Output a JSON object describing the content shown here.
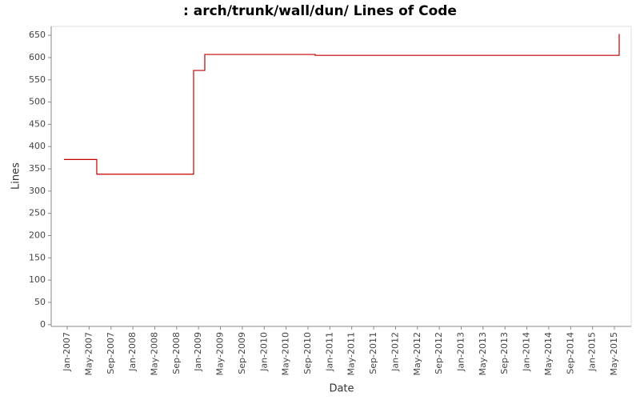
{
  "chart_data": {
    "type": "line",
    "step": "after",
    "title": ": arch/trunk/wall/dun/ Lines of Code",
    "x_label": "Date",
    "y_label": "Lines",
    "x": [
      2006.95,
      2007.45,
      2008.925,
      2009.095,
      2010.777,
      2015.406
    ],
    "series": [
      {
        "name": "Lines",
        "color": "#c00000",
        "values": [
          371,
          338,
          571,
          607,
          605,
          653
        ]
      }
    ],
    "xlim": [
      2006.756,
      2015.589
    ],
    "xticks": [
      {
        "value": 2007.0,
        "label": "Jan-2007"
      },
      {
        "value": 2007.333,
        "label": "May-2007"
      },
      {
        "value": 2007.667,
        "label": "Sep-2007"
      },
      {
        "value": 2008.0,
        "label": "Jan-2008"
      },
      {
        "value": 2008.333,
        "label": "May-2008"
      },
      {
        "value": 2008.667,
        "label": "Sep-2008"
      },
      {
        "value": 2009.0,
        "label": "Jan-2009"
      },
      {
        "value": 2009.333,
        "label": "May-2009"
      },
      {
        "value": 2009.667,
        "label": "Sep-2009"
      },
      {
        "value": 2010.0,
        "label": "Jan-2010"
      },
      {
        "value": 2010.333,
        "label": "May-2010"
      },
      {
        "value": 2010.667,
        "label": "Sep-2010"
      },
      {
        "value": 2011.0,
        "label": "Jan-2011"
      },
      {
        "value": 2011.333,
        "label": "May-2011"
      },
      {
        "value": 2011.667,
        "label": "Sep-2011"
      },
      {
        "value": 2012.0,
        "label": "Jan-2012"
      },
      {
        "value": 2012.333,
        "label": "May-2012"
      },
      {
        "value": 2012.667,
        "label": "Sep-2012"
      },
      {
        "value": 2013.0,
        "label": "Jan-2013"
      },
      {
        "value": 2013.333,
        "label": "May-2013"
      },
      {
        "value": 2013.667,
        "label": "Sep-2013"
      },
      {
        "value": 2014.0,
        "label": "Jan-2014"
      },
      {
        "value": 2014.333,
        "label": "May-2014"
      },
      {
        "value": 2014.667,
        "label": "Sep-2014"
      },
      {
        "value": 2015.0,
        "label": "Jan-2015"
      },
      {
        "value": 2015.333,
        "label": "May-2015"
      }
    ],
    "ylim": [
      -4,
      670
    ],
    "yticks": [
      0,
      50,
      100,
      150,
      200,
      250,
      300,
      350,
      400,
      450,
      500,
      550,
      600,
      650
    ]
  }
}
